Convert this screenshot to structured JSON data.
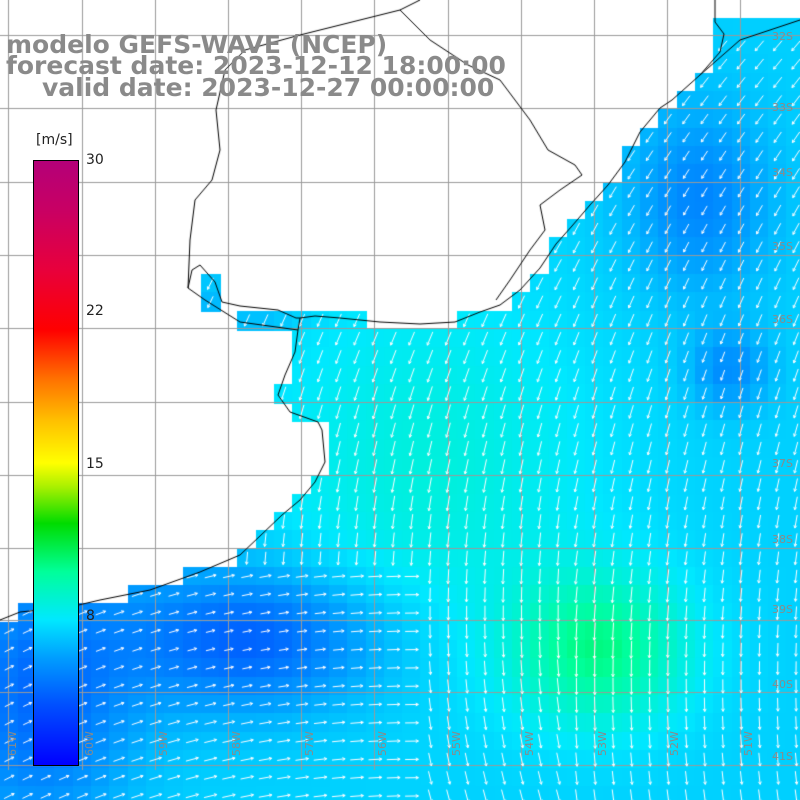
{
  "title": {
    "line1": "modelo GEFS-WAVE (NCEP)",
    "line2": "forecast date: 2023-12-12 18:00:00",
    "line3": "valid date: 2023-12-27 00:00:00"
  },
  "colorbar": {
    "unit": "[m/s]",
    "ticks": [
      "30",
      "22",
      "15",
      "8"
    ],
    "tick_values": [
      30,
      22,
      15,
      8
    ],
    "min": 0,
    "max": 30
  },
  "map": {
    "variable": "wind speed with direction arrows",
    "lon_labels": [
      "61W",
      "60W",
      "59W",
      "58W",
      "57W",
      "56W",
      "55W",
      "54W",
      "53W",
      "52W",
      "51W"
    ],
    "lat_labels": [
      "32S",
      "33S",
      "34S",
      "35S",
      "36S",
      "37S",
      "38S",
      "39S",
      "40S",
      "41S"
    ],
    "lon_range": [
      -61.5,
      -50.5
    ],
    "lat_range": [
      -31.0,
      -41.5
    ],
    "colors": {
      "land": "#ffffff",
      "coastline": "#000000",
      "grid": "#9a9a9a",
      "arrow": "#ffffff",
      "label": "#8a8a8a"
    }
  }
}
